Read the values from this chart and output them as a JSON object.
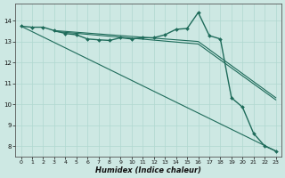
{
  "xlabel": "Humidex (Indice chaleur)",
  "background_color": "#cde8e3",
  "grid_color": "#b0d8d0",
  "line_color": "#1e6b5a",
  "xlim": [
    -0.5,
    23.5
  ],
  "ylim": [
    7.5,
    14.8
  ],
  "xticks": [
    0,
    1,
    2,
    3,
    4,
    5,
    6,
    7,
    8,
    9,
    10,
    11,
    12,
    13,
    14,
    15,
    16,
    17,
    18,
    19,
    20,
    21,
    22,
    23
  ],
  "yticks": [
    8,
    9,
    10,
    11,
    12,
    13,
    14
  ],
  "series_main": {
    "x": [
      0,
      1,
      2,
      3,
      4,
      5,
      6,
      7,
      8,
      9,
      10,
      11,
      12,
      13,
      14,
      15,
      16,
      17,
      18,
      19,
      20,
      21,
      22,
      23
    ],
    "y": [
      13.73,
      13.68,
      13.68,
      13.52,
      13.38,
      13.32,
      13.12,
      13.08,
      13.05,
      13.18,
      13.12,
      13.18,
      13.18,
      13.32,
      13.58,
      13.62,
      14.38,
      13.28,
      13.12,
      10.32,
      9.87,
      8.62,
      8.02,
      7.78
    ]
  },
  "diag_line1": {
    "x": [
      0,
      23
    ],
    "y": [
      13.73,
      7.78
    ]
  },
  "diag_line2": {
    "x": [
      3,
      16,
      23
    ],
    "y": [
      13.52,
      13.0,
      10.32
    ]
  },
  "diag_line3": {
    "x": [
      3,
      16,
      23
    ],
    "y": [
      13.48,
      12.88,
      10.22
    ]
  }
}
